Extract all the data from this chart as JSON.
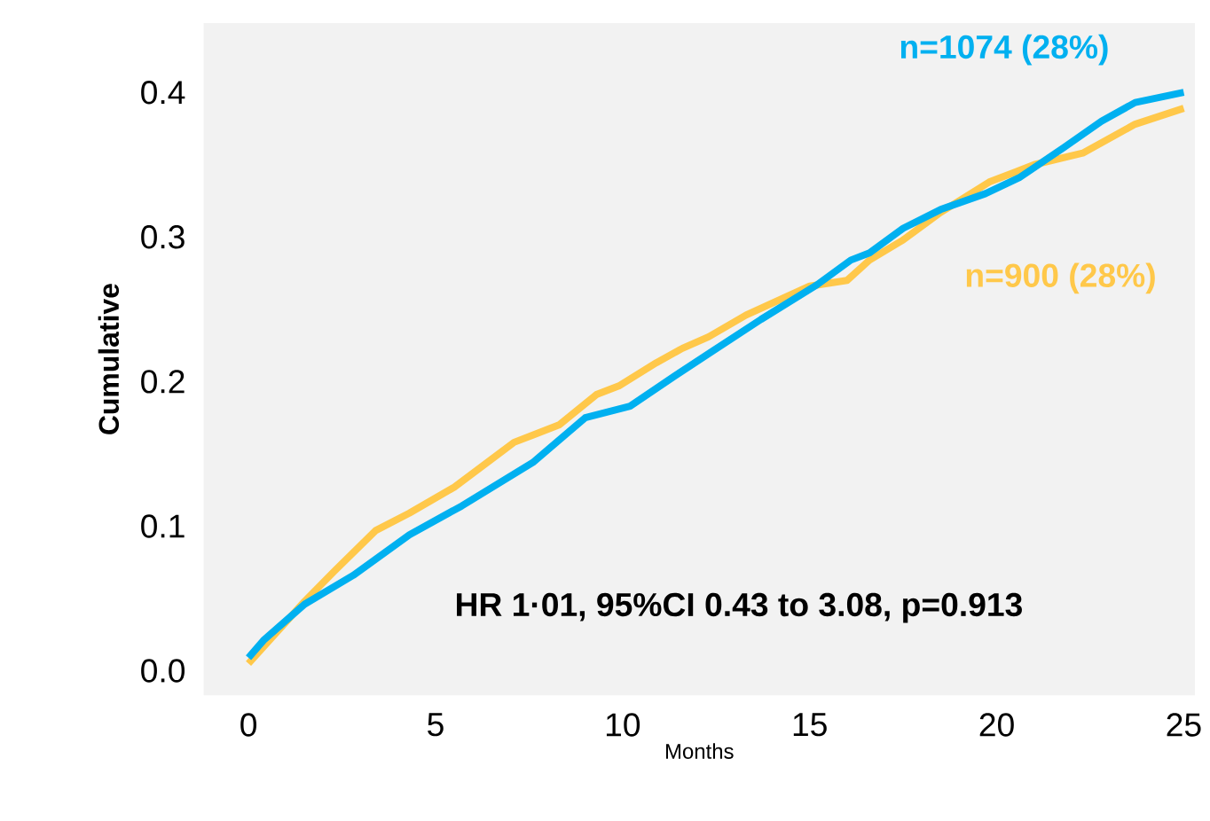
{
  "chart_data": {
    "type": "line",
    "xlabel": "Months",
    "ylabel": "Cumulative",
    "xlim": [
      -1.2,
      25.3
    ],
    "ylim": [
      -0.017,
      0.448
    ],
    "xticks": [
      0,
      5,
      10,
      15,
      20,
      25
    ],
    "yticks": [
      {
        "value": 0,
        "label": "0.0"
      },
      0.1,
      0.2,
      0.3,
      0.4
    ],
    "grid": false,
    "legend": false,
    "annotations": [
      "HR 1·01, 95%CI 0.43 to 3.08, p=0.913"
    ],
    "series": [
      {
        "name": "n=900 (28%)",
        "color": "#ffc84a",
        "x": [
          0,
          1.5,
          2.3,
          3.4,
          4.3,
          5.5,
          7.1,
          7.6,
          8.3,
          9.3,
          9.9,
          10.9,
          11.6,
          12.3,
          13.3,
          15.0,
          16.0,
          16.6,
          17.5,
          18.5,
          19.8,
          20.5,
          21.0,
          22.3,
          23.7,
          25.0
        ],
        "values": [
          0.005,
          0.048,
          0.069,
          0.097,
          0.109,
          0.127,
          0.158,
          0.163,
          0.17,
          0.191,
          0.197,
          0.213,
          0.223,
          0.231,
          0.246,
          0.266,
          0.27,
          0.284,
          0.298,
          0.317,
          0.338,
          0.345,
          0.35,
          0.358,
          0.378,
          0.389
        ]
      },
      {
        "name": "n=1074 (28%)",
        "color": "#00b0f0",
        "x": [
          0,
          0.4,
          1.5,
          2.8,
          4.3,
          5.7,
          7.6,
          9.0,
          10.2,
          11.4,
          12.4,
          13.7,
          15.2,
          16.1,
          16.6,
          17.5,
          18.5,
          19.7,
          20.6,
          21.8,
          22.8,
          23.7,
          25.0
        ],
        "values": [
          0.009,
          0.021,
          0.046,
          0.066,
          0.094,
          0.114,
          0.144,
          0.175,
          0.183,
          0.204,
          0.221,
          0.243,
          0.267,
          0.284,
          0.289,
          0.306,
          0.319,
          0.33,
          0.341,
          0.362,
          0.38,
          0.393,
          0.4
        ]
      }
    ]
  }
}
